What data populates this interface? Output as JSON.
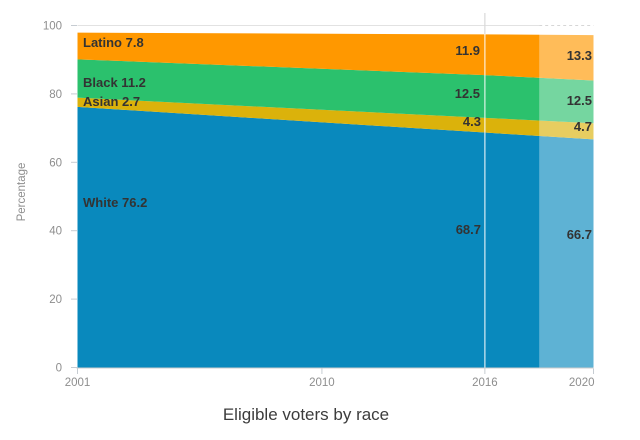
{
  "chart_data": {
    "type": "area",
    "stacked": true,
    "title": "Eligible voters by race",
    "xlabel": "",
    "ylabel": "Percentage",
    "x": [
      2001,
      2016,
      2020
    ],
    "xticks": [
      "2001",
      "2010",
      "2016",
      "2020"
    ],
    "xtick_years": [
      2001,
      2010,
      2016,
      2020
    ],
    "yticks": [
      "0",
      "20",
      "40",
      "60",
      "80",
      "100"
    ],
    "ytick_values": [
      0,
      20,
      40,
      60,
      80,
      100
    ],
    "ylim": [
      0,
      100
    ],
    "xlim": [
      2001,
      2020
    ],
    "grid": "top-line-only",
    "legend": "inline-area-labels",
    "projection_start_year": 2018,
    "reference_line_year": 2016,
    "series": [
      {
        "name": "White",
        "color": "#0989BD",
        "light_color": "#5FACD1",
        "values": [
          76.2,
          68.7,
          66.7
        ]
      },
      {
        "name": "Asian",
        "color": "#DBB20B",
        "light_color": "#E5CA60",
        "values": [
          2.7,
          4.3,
          4.7
        ]
      },
      {
        "name": "Black",
        "color": "#2BC16D",
        "light_color": "#82D5A0",
        "values": [
          11.2,
          12.5,
          12.5
        ]
      },
      {
        "name": "Latino",
        "color": "#FF9800",
        "light_color": "#FFAE59",
        "values": [
          7.8,
          11.9,
          13.3
        ]
      }
    ],
    "annotations": {
      "start": {
        "latino": "Latino 7.8",
        "black": "Black 11.2",
        "asian": "Asian 2.7",
        "white": "White 76.2"
      },
      "mid": {
        "latino": "11.9",
        "black": "12.5",
        "asian": "4.3",
        "white": "68.7"
      },
      "end": {
        "latino": "13.3",
        "black": "12.5",
        "asian": "4.7",
        "white": "66.7"
      }
    }
  },
  "colors": {
    "grid_line": "#e2e2e2",
    "dashed_line": "#d6d6d6",
    "axis_line": "#cccccc",
    "tick_mark": "#c6ccd2",
    "reference_line_top": "#d9d9d9",
    "reference_line_over_area": "rgba(255,255,255,0.72)",
    "projection_overlay": "rgba(255,255,255,0.35)"
  }
}
